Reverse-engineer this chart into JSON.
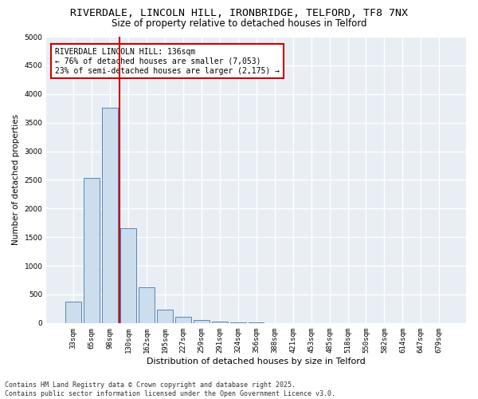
{
  "title1": "RIVERDALE, LINCOLN HILL, IRONBRIDGE, TELFORD, TF8 7NX",
  "title2": "Size of property relative to detached houses in Telford",
  "xlabel": "Distribution of detached houses by size in Telford",
  "ylabel": "Number of detached properties",
  "categories": [
    "33sqm",
    "65sqm",
    "98sqm",
    "130sqm",
    "162sqm",
    "195sqm",
    "227sqm",
    "259sqm",
    "291sqm",
    "324sqm",
    "356sqm",
    "388sqm",
    "421sqm",
    "453sqm",
    "485sqm",
    "518sqm",
    "550sqm",
    "582sqm",
    "614sqm",
    "647sqm",
    "679sqm"
  ],
  "values": [
    380,
    2530,
    3760,
    1650,
    620,
    230,
    105,
    60,
    30,
    10,
    5,
    2,
    1,
    1,
    0,
    0,
    0,
    0,
    0,
    0,
    0
  ],
  "bar_color": "#ccdded",
  "bar_edge_color": "#4477aa",
  "redline_index": 3,
  "annotation_title": "RIVERDALE LINCOLN HILL: 136sqm",
  "annotation_line1": "← 76% of detached houses are smaller (7,053)",
  "annotation_line2": "23% of semi-detached houses are larger (2,175) →",
  "annotation_box_facecolor": "#ffffff",
  "annotation_box_edgecolor": "#cc0000",
  "redline_color": "#cc0000",
  "ylim": [
    0,
    5000
  ],
  "yticks": [
    0,
    500,
    1000,
    1500,
    2000,
    2500,
    3000,
    3500,
    4000,
    4500,
    5000
  ],
  "footer1": "Contains HM Land Registry data © Crown copyright and database right 2025.",
  "footer2": "Contains public sector information licensed under the Open Government Licence v3.0.",
  "bg_color": "#ffffff",
  "plot_bg_color": "#e8eef4",
  "grid_color": "#ffffff",
  "title_fontsize": 9.5,
  "subtitle_fontsize": 8.5,
  "axis_label_fontsize": 7.5,
  "tick_fontsize": 6.5,
  "annotation_fontsize": 7,
  "footer_fontsize": 6
}
